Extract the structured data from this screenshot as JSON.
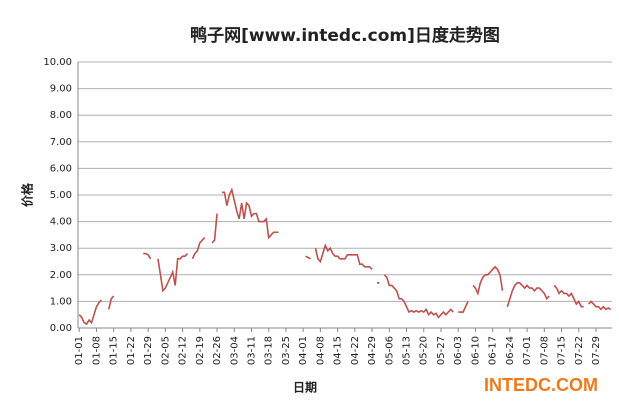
{
  "chart_data": {
    "type": "line",
    "title": "鸭子网[www.intedc.com]日度走势图",
    "brand": "INTEDC.COM",
    "x_label": "日期",
    "y_label": "价格",
    "categories": [
      "01-01",
      null,
      null,
      null,
      null,
      null,
      null,
      "01-08",
      null,
      null,
      null,
      null,
      null,
      null,
      "01-15",
      null,
      null,
      null,
      null,
      null,
      null,
      "01-22",
      null,
      null,
      null,
      null,
      null,
      null,
      "01-29",
      null,
      null,
      null,
      null,
      null,
      null,
      "02-05",
      null,
      null,
      null,
      null,
      null,
      null,
      "02-12",
      null,
      null,
      null,
      null,
      null,
      null,
      "02-19",
      null,
      null,
      null,
      null,
      null,
      null,
      "02-26",
      null,
      null,
      null,
      null,
      null,
      null,
      "03-04",
      null,
      null,
      null,
      null,
      null,
      null,
      "03-11",
      null,
      null,
      null,
      null,
      null,
      null,
      "03-18",
      null,
      null,
      null,
      null,
      null,
      null,
      "03-25",
      null,
      null,
      null,
      null,
      null,
      null,
      "04-01",
      null,
      null,
      null,
      null,
      null,
      null,
      "04-08",
      null,
      null,
      null,
      null,
      null,
      null,
      "04-15",
      null,
      null,
      null,
      null,
      null,
      null,
      "04-22",
      null,
      null,
      null,
      null,
      null,
      null,
      "04-29",
      null,
      null,
      null,
      null,
      null,
      null,
      "05-06",
      null,
      null,
      null,
      null,
      null,
      null,
      "05-13",
      null,
      null,
      null,
      null,
      null,
      null,
      "05-20",
      null,
      null,
      null,
      null,
      null,
      null,
      "05-27",
      null,
      null,
      null,
      null,
      null,
      null,
      "06-03",
      null,
      null,
      null,
      null,
      null,
      null,
      "06-10",
      null,
      null,
      null,
      null,
      null,
      null,
      "06-17",
      null,
      null,
      null,
      null,
      null,
      null,
      "06-24",
      null,
      null,
      null,
      null,
      null,
      null,
      "07-01",
      null,
      null,
      null,
      null,
      null,
      null,
      "07-08",
      null,
      null,
      null,
      null,
      null,
      null,
      "07-15",
      null,
      null,
      null,
      null,
      null,
      null,
      "07-22",
      null,
      null,
      null,
      null,
      null,
      null,
      "07-29",
      null,
      null,
      null,
      null,
      null,
      null
    ],
    "series": [
      {
        "name": "价格",
        "color": "#c0504d",
        "values": [
          0.5,
          0.4,
          0.2,
          0.15,
          0.3,
          0.2,
          0.5,
          0.8,
          0.95,
          1.05,
          null,
          null,
          0.7,
          1.1,
          1.2,
          null,
          null,
          null,
          null,
          null,
          null,
          null,
          null,
          null,
          null,
          null,
          2.8,
          2.8,
          2.75,
          2.6,
          null,
          null,
          2.6,
          2.0,
          1.4,
          1.5,
          1.7,
          1.9,
          2.1,
          1.6,
          2.6,
          2.6,
          2.7,
          2.7,
          2.8,
          null,
          2.6,
          2.8,
          2.9,
          3.2,
          3.3,
          3.4,
          null,
          null,
          3.2,
          3.3,
          4.3,
          null,
          5.1,
          5.1,
          4.6,
          5.0,
          5.2,
          4.8,
          4.4,
          4.1,
          4.7,
          4.1,
          4.7,
          4.6,
          4.2,
          4.3,
          4.3,
          4.0,
          4.0,
          4.0,
          4.1,
          3.4,
          3.5,
          3.6,
          3.6,
          3.6,
          null,
          null,
          null,
          null,
          null,
          null,
          null,
          null,
          null,
          null,
          2.7,
          2.65,
          2.6,
          null,
          3.0,
          2.6,
          2.5,
          2.8,
          3.1,
          2.9,
          3.0,
          2.8,
          2.7,
          2.7,
          2.6,
          2.6,
          2.6,
          2.75,
          2.75,
          2.75,
          2.75,
          2.75,
          2.4,
          2.4,
          2.3,
          2.3,
          2.3,
          2.2,
          null,
          1.7,
          1.7,
          null,
          2.0,
          1.9,
          1.6,
          1.6,
          1.5,
          1.4,
          1.1,
          1.1,
          1.0,
          0.8,
          0.6,
          0.65,
          0.6,
          0.65,
          0.6,
          0.65,
          0.6,
          0.7,
          0.5,
          0.6,
          0.5,
          0.55,
          0.4,
          0.5,
          0.6,
          0.5,
          0.6,
          0.7,
          0.6,
          null,
          0.6,
          0.6,
          0.6,
          0.8,
          1.0,
          null,
          1.6,
          1.5,
          1.3,
          1.7,
          1.9,
          2.0,
          2.0,
          2.1,
          2.2,
          2.3,
          2.2,
          2.0,
          1.4,
          null,
          0.8,
          1.1,
          1.4,
          1.6,
          1.7,
          1.7,
          1.6,
          1.5,
          1.6,
          1.5,
          1.5,
          1.4,
          1.5,
          1.5,
          1.4,
          1.3,
          1.1,
          1.2,
          null,
          1.6,
          1.5,
          1.3,
          1.4,
          1.3,
          1.3,
          1.2,
          1.3,
          1.1,
          0.9,
          1.0,
          0.8,
          0.8,
          null,
          0.9,
          1.0,
          0.9,
          0.8,
          0.8,
          0.7,
          0.8,
          0.7,
          0.75,
          0.7
        ]
      }
    ],
    "ylim": [
      0,
      10
    ],
    "yticks": [
      {
        "value": 0,
        "label": "0.00"
      },
      {
        "value": 1,
        "label": "1.00"
      },
      {
        "value": 2,
        "label": "2.00"
      },
      {
        "value": 3,
        "label": "3.00"
      },
      {
        "value": 4,
        "label": "4.00"
      },
      {
        "value": 5,
        "label": "5.00"
      },
      {
        "value": 6,
        "label": "6.00"
      },
      {
        "value": 7,
        "label": "7.00"
      },
      {
        "value": 8,
        "label": "8.00"
      },
      {
        "value": 9,
        "label": "9.00"
      },
      {
        "value": 10,
        "label": "10.00"
      }
    ],
    "grid": true
  }
}
